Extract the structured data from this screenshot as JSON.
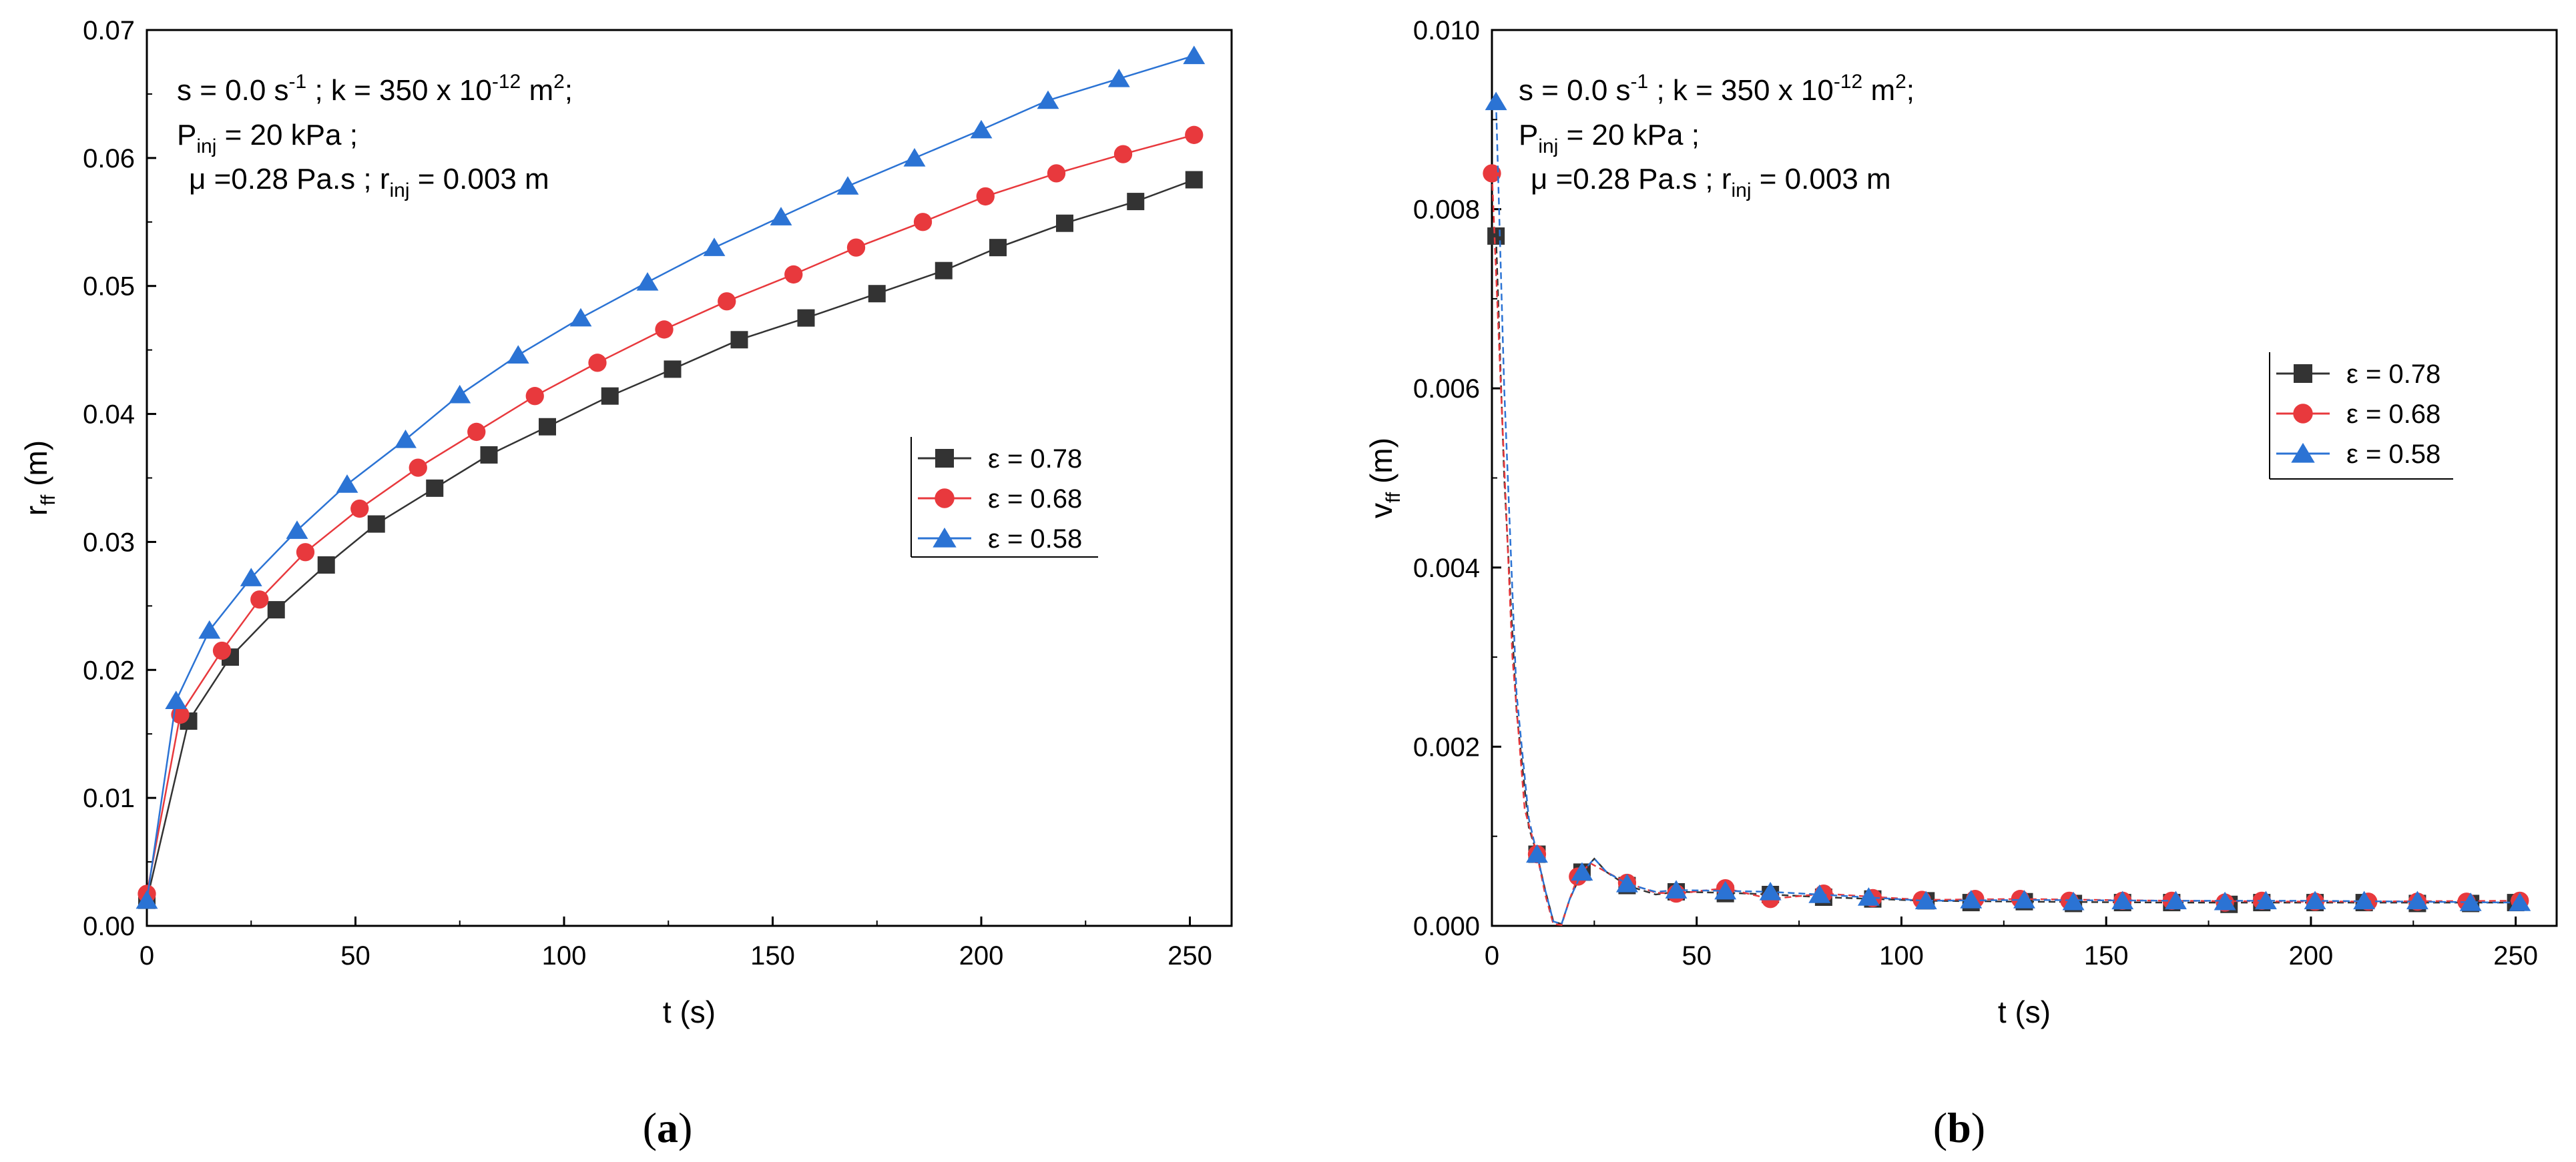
{
  "chart_data": [
    {
      "type": "line",
      "panel_label": "a",
      "xlabel": "t (s)",
      "ylabel": {
        "base": "r",
        "sub": "ff",
        "unit": " (m)"
      },
      "xlim": [
        0,
        260
      ],
      "ylim": [
        0,
        0.07
      ],
      "xticks": [
        "0",
        "50",
        "100",
        "150",
        "200",
        "250"
      ],
      "yticks": [
        "0.00",
        "0.01",
        "0.02",
        "0.03",
        "0.04",
        "0.05",
        "0.06",
        "0.07"
      ],
      "xtick_values": [
        0,
        50,
        100,
        150,
        200,
        250
      ],
      "ytick_values": [
        0,
        0.01,
        0.02,
        0.03,
        0.04,
        0.05,
        0.06,
        0.07
      ],
      "annotation": {
        "line1": {
          "a": "s = 0.0 s",
          "b": "-1",
          "c": " ; k = 350 x 10",
          "d": "-12",
          "e": " m",
          "f": "2",
          "g": ";"
        },
        "line2": {
          "a": "P",
          "b": "inj",
          "c": " = 20 kPa ;"
        },
        "line3": {
          "a": "μ =0.28 Pa.s ; r",
          "b": "inj",
          "c": " = 0.003 m"
        }
      },
      "legend_position": "center-right",
      "series": [
        {
          "name": "ε = 0.78",
          "color": "#333333",
          "marker": "square",
          "x": [
            0,
            10,
            20,
            31,
            43,
            55,
            69,
            82,
            96,
            111,
            126,
            142,
            158,
            175,
            191,
            204,
            220,
            237,
            251
          ],
          "values": [
            0.002,
            0.016,
            0.021,
            0.0247,
            0.0282,
            0.0314,
            0.0342,
            0.0368,
            0.039,
            0.0414,
            0.0435,
            0.0458,
            0.0475,
            0.0494,
            0.0512,
            0.053,
            0.0549,
            0.0566,
            0.0583
          ]
        },
        {
          "name": "ε = 0.68",
          "color": "#e8393d",
          "marker": "circle",
          "x": [
            0,
            8,
            18,
            27,
            38,
            51,
            65,
            79,
            93,
            108,
            124,
            139,
            155,
            170,
            186,
            201,
            218,
            234,
            251
          ],
          "values": [
            0.0025,
            0.0165,
            0.0215,
            0.0255,
            0.0292,
            0.0326,
            0.0358,
            0.0386,
            0.0414,
            0.044,
            0.0466,
            0.0488,
            0.0509,
            0.053,
            0.055,
            0.057,
            0.0588,
            0.0603,
            0.0618
          ]
        },
        {
          "name": "ε = 0.58",
          "color": "#2b73d4",
          "marker": "triangle",
          "x": [
            0,
            7,
            15,
            25,
            36,
            48,
            62,
            75,
            89,
            104,
            120,
            136,
            152,
            168,
            184,
            200,
            216,
            233,
            251
          ],
          "values": [
            0.002,
            0.0176,
            0.0231,
            0.0272,
            0.0309,
            0.0345,
            0.038,
            0.0415,
            0.0446,
            0.0475,
            0.0503,
            0.053,
            0.0554,
            0.0578,
            0.06,
            0.0622,
            0.0645,
            0.0662,
            0.068
          ]
        }
      ]
    },
    {
      "type": "line",
      "panel_label": "b",
      "xlabel": "t (s)",
      "ylabel": {
        "base": "v",
        "sub": "ff",
        "unit": " (m)"
      },
      "xlim": [
        0,
        260
      ],
      "ylim": [
        0,
        0.01
      ],
      "xticks": [
        "0",
        "50",
        "100",
        "150",
        "200",
        "250"
      ],
      "yticks": [
        "0.000",
        "0.002",
        "0.004",
        "0.006",
        "0.008",
        "0.010"
      ],
      "xtick_values": [
        0,
        50,
        100,
        150,
        200,
        250
      ],
      "ytick_values": [
        0,
        0.002,
        0.004,
        0.006,
        0.008,
        0.01
      ],
      "annotation": {
        "line1": {
          "a": "s = 0.0 s",
          "b": "-1",
          "c": " ; k = 350 x 10",
          "d": "-12",
          "e": " m",
          "f": "2",
          "g": ";"
        },
        "line2": {
          "a": "P",
          "b": "inj",
          "c": " = 20 kPa ;"
        },
        "line3": {
          "a": "μ =0.28 Pa.s ; r",
          "b": "inj",
          "c": " = 0.003 m"
        }
      },
      "legend_position": "center-right",
      "series": [
        {
          "name": "ε = 0.78",
          "color": "#333333",
          "marker": "square",
          "x": [
            1,
            11,
            22,
            33,
            45,
            57,
            68,
            81,
            93,
            106,
            117,
            130,
            142,
            154,
            166,
            180,
            188,
            201,
            213,
            226,
            239,
            250
          ],
          "values": [
            0.0077,
            0.0008,
            0.0006,
            0.00045,
            0.00038,
            0.00036,
            0.00035,
            0.00032,
            0.0003,
            0.00028,
            0.00026,
            0.00027,
            0.00025,
            0.00026,
            0.00026,
            0.00024,
            0.00026,
            0.00026,
            0.00026,
            0.00025,
            0.00025,
            0.00026
          ],
          "curve_x": [
            1,
            3,
            6,
            9,
            11,
            13,
            15,
            17,
            19,
            22,
            25,
            28,
            33,
            40,
            45,
            57,
            68,
            81,
            106,
            130,
            166,
            201,
            250
          ],
          "curve_y": [
            0.0077,
            0.005,
            0.0024,
            0.0011,
            0.0008,
            0.0004,
            5e-05,
            2e-05,
            0.0003,
            0.0006,
            0.00075,
            0.0006,
            0.00045,
            0.00035,
            0.00038,
            0.00037,
            0.00035,
            0.00032,
            0.00028,
            0.00027,
            0.00026,
            0.00026,
            0.00026
          ]
        },
        {
          "name": "ε = 0.68",
          "color": "#e8393d",
          "marker": "circle",
          "x": [
            0,
            11,
            21,
            33,
            45,
            57,
            68,
            81,
            93,
            105,
            118,
            129,
            141,
            154,
            166,
            179,
            188,
            201,
            214,
            226,
            238,
            251
          ],
          "values": [
            0.0084,
            0.0008,
            0.00055,
            0.00048,
            0.00036,
            0.00042,
            0.0003,
            0.00036,
            0.00031,
            0.00029,
            0.0003,
            0.0003,
            0.00028,
            0.00028,
            0.00028,
            0.00026,
            0.00028,
            0.00027,
            0.00027,
            0.00027,
            0.00027,
            0.00028
          ],
          "curve_x": [
            0,
            2,
            5,
            8,
            11,
            13,
            15,
            17,
            19,
            21,
            24,
            28,
            33,
            40,
            45,
            57,
            68,
            81,
            105,
            129,
            166,
            201,
            251
          ],
          "curve_y": [
            0.0084,
            0.0062,
            0.003,
            0.0013,
            0.0008,
            0.00035,
            2e-05,
            1e-05,
            0.0003,
            0.00055,
            0.0007,
            0.0006,
            0.00048,
            0.00037,
            0.00036,
            0.00042,
            0.0003,
            0.00036,
            0.00029,
            0.0003,
            0.00028,
            0.00027,
            0.00028
          ]
        },
        {
          "name": "ε = 0.58",
          "color": "#2b73d4",
          "marker": "triangle",
          "x": [
            1,
            11,
            22,
            33,
            45,
            57,
            68,
            80,
            92,
            106,
            117,
            130,
            142,
            154,
            167,
            179,
            189,
            201,
            213,
            226,
            239,
            251
          ],
          "values": [
            0.0092,
            0.0008,
            0.0006,
            0.00047,
            0.0004,
            0.00039,
            0.00038,
            0.00035,
            0.00032,
            0.00028,
            0.00029,
            0.00029,
            0.00027,
            0.00028,
            0.00028,
            0.00027,
            0.00028,
            0.00028,
            0.00028,
            0.00028,
            0.00026,
            0.00026
          ],
          "curve_x": [
            1,
            3,
            6,
            9,
            11,
            13,
            15,
            17,
            19,
            22,
            25,
            28,
            33,
            40,
            45,
            57,
            68,
            80,
            106,
            130,
            167,
            201,
            251
          ],
          "curve_y": [
            0.0092,
            0.006,
            0.0026,
            0.0012,
            0.0008,
            0.0004,
            5e-05,
            2e-05,
            0.0003,
            0.0006,
            0.00075,
            0.0006,
            0.00047,
            0.00038,
            0.0004,
            0.00039,
            0.00038,
            0.00035,
            0.00028,
            0.00029,
            0.00028,
            0.00028,
            0.00026
          ]
        }
      ]
    }
  ]
}
